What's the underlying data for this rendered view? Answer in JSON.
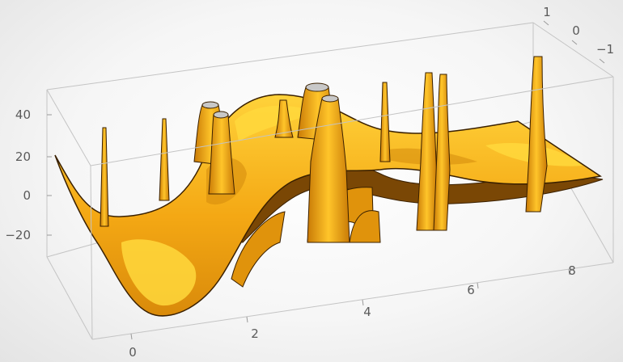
{
  "chart_data": {
    "type": "surface3d",
    "x_ticks": [
      "0",
      "2",
      "4",
      "6",
      "8"
    ],
    "y_ticks": [
      "1",
      "0",
      "−1"
    ],
    "z_ticks": [
      "40",
      "20",
      "0",
      "−20"
    ],
    "xlim": [
      -0.3,
      8.6
    ],
    "ylim": [
      -1.3,
      1.3
    ],
    "zlim": [
      -35,
      50
    ],
    "grid": false,
    "legend": "none",
    "surface_color": "#f4a814",
    "highlight_color": "#ffd23a",
    "shadow_color": "#b96e06",
    "edge_color": "#3a2000",
    "spikes_x": [
      0.2,
      1.4,
      2.4,
      3.5,
      4.4,
      5.3,
      5.5,
      6.8
    ]
  }
}
